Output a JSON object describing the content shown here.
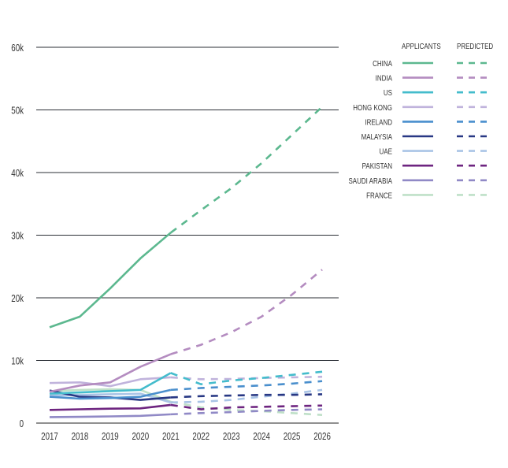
{
  "chart_data": {
    "type": "line",
    "title": "",
    "xlabel": "",
    "ylabel": "",
    "ylim": [
      0,
      60000
    ],
    "yticks": [
      0,
      10000,
      20000,
      30000,
      40000,
      50000,
      60000
    ],
    "ytick_labels": [
      "0",
      "10k",
      "20k",
      "30k",
      "40k",
      "50k",
      "60k"
    ],
    "x": [
      "2017",
      "2018",
      "2019",
      "2020",
      "2021",
      "2022",
      "2023",
      "2024",
      "2025",
      "2026"
    ],
    "actual_until": "2021",
    "grid": true,
    "legend": {
      "placement": "right",
      "headers": {
        "actual": "APPLICANTS",
        "predicted": "PREDICTED"
      }
    },
    "series": [
      {
        "name": "CHINA",
        "color": "#5cb88f",
        "values": [
          15300,
          17000,
          21500,
          26300,
          30400,
          34000,
          37500,
          41500,
          46000,
          50500
        ]
      },
      {
        "name": "INDIA",
        "color": "#b48cc0",
        "values": [
          5000,
          6000,
          6500,
          9000,
          11000,
          12500,
          14500,
          17000,
          20500,
          24500
        ]
      },
      {
        "name": "US",
        "color": "#44bccc",
        "values": [
          4700,
          4900,
          5100,
          5300,
          8000,
          6200,
          6800,
          7200,
          7700,
          8200
        ]
      },
      {
        "name": "HONG KONG",
        "color": "#c0b3dc",
        "values": [
          6400,
          6500,
          5900,
          7000,
          7300,
          7000,
          7050,
          7200,
          7300,
          7400
        ]
      },
      {
        "name": "IRELAND",
        "color": "#4a8fcd",
        "values": [
          4200,
          3900,
          4000,
          4200,
          5300,
          5600,
          5800,
          6000,
          6300,
          6700
        ]
      },
      {
        "name": "MALAYSIA",
        "color": "#283884",
        "values": [
          5200,
          4200,
          4100,
          3700,
          4100,
          4300,
          4400,
          4500,
          4500,
          4600
        ]
      },
      {
        "name": "UAE",
        "color": "#a9c4e6",
        "values": [
          4400,
          4500,
          4600,
          4700,
          3300,
          3400,
          3700,
          4200,
          4700,
          5300
        ]
      },
      {
        "name": "PAKISTAN",
        "color": "#6e2580",
        "values": [
          2100,
          2200,
          2300,
          2350,
          2900,
          2200,
          2500,
          2600,
          2700,
          2800
        ]
      },
      {
        "name": "SAUDI ARABIA",
        "color": "#9089c6",
        "values": [
          950,
          1000,
          1070,
          1150,
          1400,
          1600,
          1750,
          1950,
          2100,
          2200
        ]
      },
      {
        "name": "FRANCE",
        "color": "#bfe0c8",
        "values": [
          5100,
          5300,
          5400,
          5300,
          3400,
          2500,
          2100,
          1900,
          1600,
          1300
        ]
      }
    ]
  }
}
